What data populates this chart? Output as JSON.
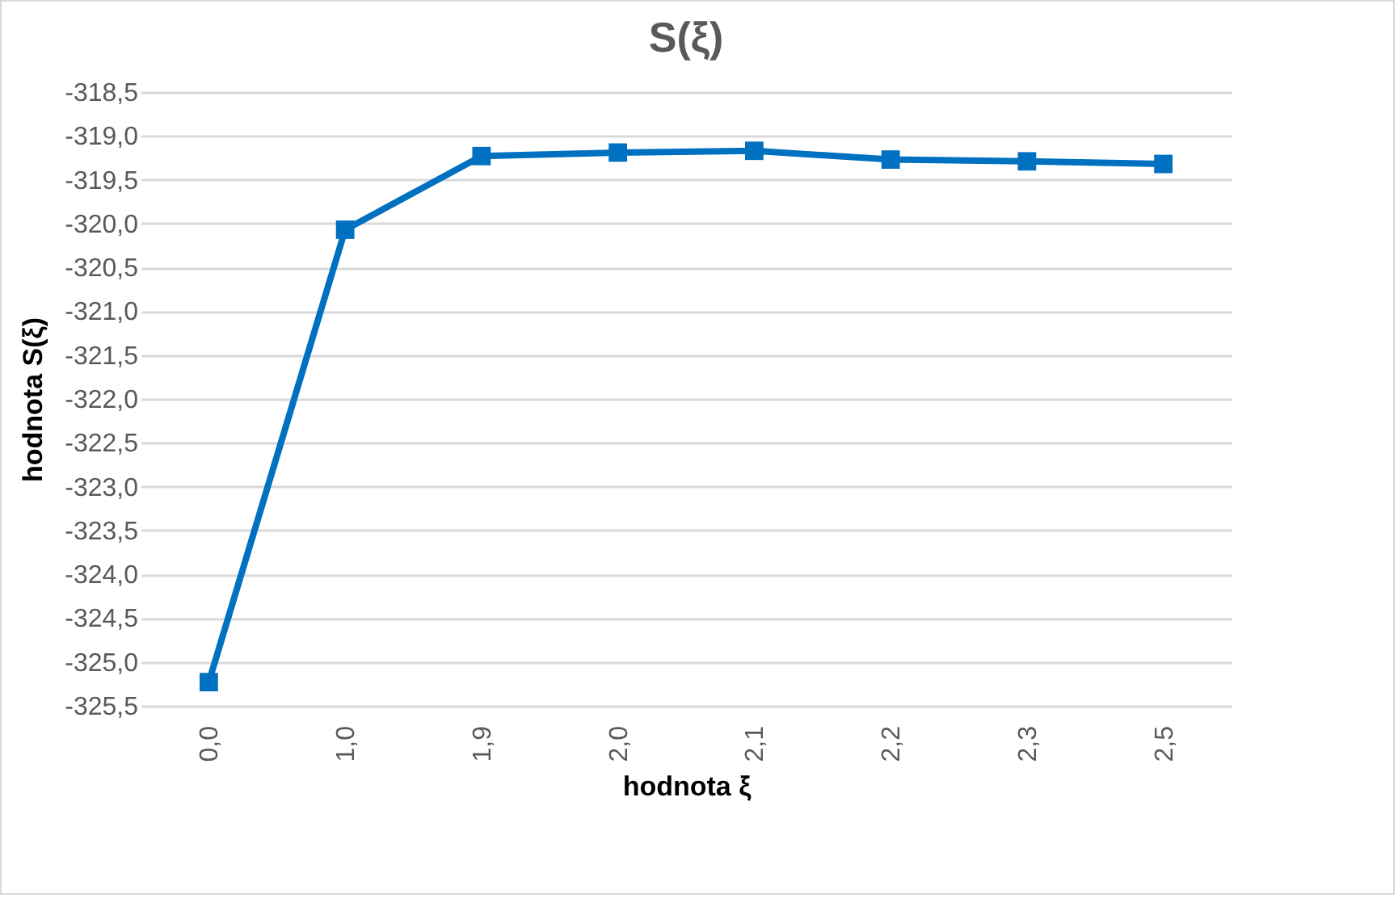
{
  "chart_data": {
    "type": "line",
    "title": "S(ξ)",
    "xlabel": "hodnota ξ",
    "ylabel": "hodnota S(ξ)",
    "categories": [
      "0,0",
      "1,0",
      "1,9",
      "2,0",
      "2,1",
      "2,2",
      "2,3",
      "2,5"
    ],
    "series": [
      {
        "color": "#0070c0",
        "values": [
          -325.23,
          -320.07,
          -319.23,
          -319.19,
          -319.17,
          -319.27,
          -319.29,
          -319.32
        ]
      }
    ],
    "ylim": [
      -325.5,
      -318.5
    ],
    "yticks": [
      {
        "value": -325.5,
        "label": "-325,5"
      },
      {
        "value": -325,
        "label": "-325,0"
      },
      {
        "value": -324.5,
        "label": "-324,5"
      },
      {
        "value": -324,
        "label": "-324,0"
      },
      {
        "value": -323.5,
        "label": "-323,5"
      },
      {
        "value": -323,
        "label": "-323,0"
      },
      {
        "value": -322.5,
        "label": "-322,5"
      },
      {
        "value": -322,
        "label": "-322,0"
      },
      {
        "value": -321.5,
        "label": "-321,5"
      },
      {
        "value": -321,
        "label": "-321,0"
      },
      {
        "value": -320.5,
        "label": "-320,5"
      },
      {
        "value": -320,
        "label": "-320,0"
      },
      {
        "value": -319.5,
        "label": "-319,5"
      },
      {
        "value": -319,
        "label": "-319,0"
      },
      {
        "value": -318.5,
        "label": "-318,5"
      }
    ],
    "grid": "y",
    "marker": "square",
    "line_style": "solid"
  }
}
